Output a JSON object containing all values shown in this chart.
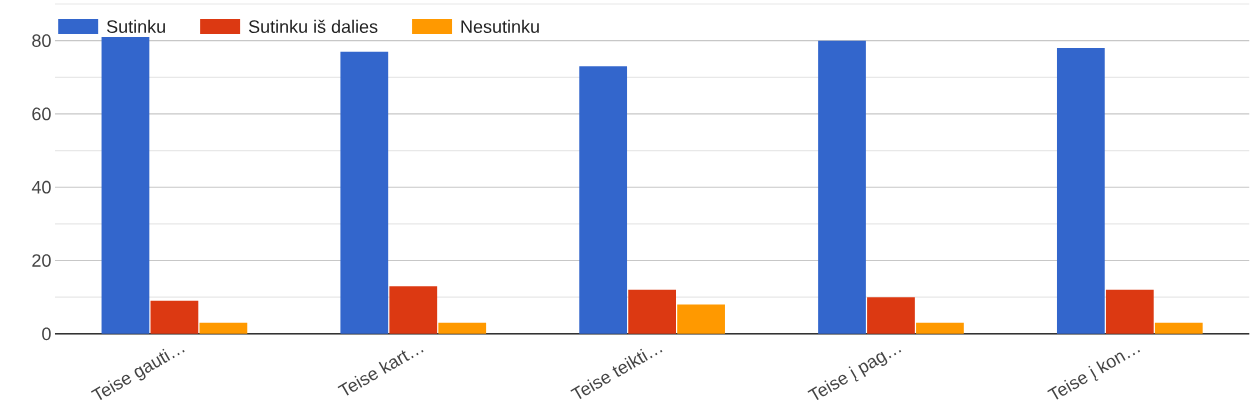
{
  "chart_data": {
    "type": "bar",
    "categories": [
      "Teise gauti…",
      "Teise kart…",
      "Teise teikti…",
      "Teise į pag…",
      "Teise į kon…"
    ],
    "series": [
      {
        "name": "Sutinku",
        "color": "#3366cc",
        "values": [
          81,
          77,
          73,
          80,
          78
        ]
      },
      {
        "name": "Sutinku iš dalies",
        "color": "#dc3912",
        "values": [
          9,
          13,
          12,
          10,
          12
        ]
      },
      {
        "name": "Nesutinku",
        "color": "#ff9900",
        "values": [
          3,
          3,
          8,
          3,
          3
        ]
      }
    ],
    "ylim": [
      0,
      90
    ],
    "yticks": [
      0,
      20,
      40,
      60,
      80
    ],
    "grid": true,
    "legend": "top left"
  }
}
